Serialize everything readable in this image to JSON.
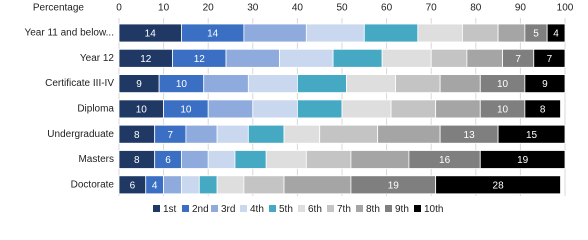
{
  "chart_data": {
    "type": "stacked-bar-horizontal",
    "x_label": "Percentage",
    "categories": [
      "Year 11 and below...",
      "Year 12",
      "Certificate III-IV",
      "Diploma",
      "Undergraduate",
      "Masters",
      "Doctorate"
    ],
    "series": [
      {
        "name": "1st",
        "color": "#1f3864",
        "labels": true,
        "values": [
          14,
          12,
          9,
          10,
          8,
          8,
          6
        ]
      },
      {
        "name": "2nd",
        "color": "#3a6fc4",
        "labels": true,
        "values": [
          14,
          12,
          10,
          10,
          7,
          6,
          4
        ]
      },
      {
        "name": "3rd",
        "color": "#8faadc",
        "labels": false,
        "values": [
          14,
          12,
          10,
          10,
          7,
          6,
          4
        ]
      },
      {
        "name": "4th",
        "color": "#c9d7ef",
        "labels": false,
        "values": [
          13,
          12,
          11,
          10,
          7,
          6,
          4
        ]
      },
      {
        "name": "5th",
        "color": "#45a9c3",
        "labels": false,
        "values": [
          12,
          11,
          11,
          10,
          8,
          7,
          4
        ]
      },
      {
        "name": "6th",
        "color": "#dedede",
        "labels": false,
        "values": [
          10,
          11,
          11,
          11,
          8,
          9,
          6
        ]
      },
      {
        "name": "7th",
        "color": "#c4c4c4",
        "labels": false,
        "values": [
          8,
          8,
          10,
          10,
          13,
          10,
          9
        ]
      },
      {
        "name": "8th",
        "color": "#a5a5a5",
        "labels": false,
        "values": [
          6,
          8,
          9,
          10,
          14,
          13,
          15
        ]
      },
      {
        "name": "9th",
        "color": "#7f7f7f",
        "labels": true,
        "values": [
          5,
          7,
          10,
          10,
          13,
          16,
          19
        ]
      },
      {
        "name": "10th",
        "color": "#000000",
        "labels": true,
        "values": [
          4,
          7,
          9,
          8,
          15,
          19,
          28
        ]
      }
    ],
    "xlim": [
      0,
      100
    ],
    "xticks": [
      0,
      10,
      20,
      30,
      40,
      50,
      60,
      70,
      80,
      90,
      100
    ],
    "grid": true,
    "legend": "bottom"
  }
}
